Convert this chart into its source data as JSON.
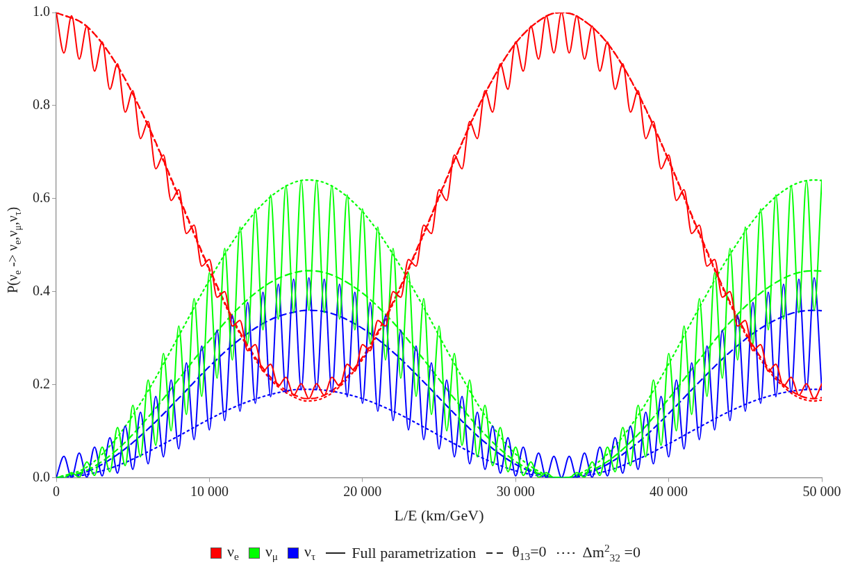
{
  "chart_data": {
    "type": "line",
    "xlabel": "L/E (km/GeV)",
    "ylabel": "P(ν$_{e}$ -> ν$_{e}$,ν$_{μ}$,ν$_{τ}$)",
    "x": [
      0,
      500,
      1000,
      1500,
      2000,
      2500,
      3000,
      3500,
      4000,
      4500,
      5000,
      5500,
      6000,
      6500,
      7000,
      7500,
      8000,
      8500,
      9000,
      9500,
      10000,
      10500,
      11000,
      11500,
      12000,
      12500,
      13000,
      13500,
      14000,
      14500,
      15000,
      15500,
      16000,
      16500,
      17000,
      17500,
      18000,
      18500,
      19000,
      19500,
      20000,
      20500,
      21000,
      21500,
      22000,
      22500,
      23000,
      23500,
      24000,
      24500,
      25000,
      25500,
      26000,
      26500,
      27000,
      27500,
      28000,
      28500,
      29000,
      29500,
      30000,
      30500,
      31000,
      31500,
      32000,
      32500,
      33000,
      33500,
      34000,
      34500,
      35000,
      35500,
      36000,
      36500,
      37000,
      37500,
      38000,
      38500,
      39000,
      39500,
      40000,
      40500,
      41000,
      41500,
      42000,
      42500,
      43000,
      43500,
      44000,
      44500,
      45000,
      45500,
      46000,
      46500,
      47000,
      47500,
      48000,
      48500,
      49000,
      49500,
      50000
    ],
    "xlim": [
      0,
      50000
    ],
    "xticks": [
      0,
      {
        "value": 10000,
        "label": "10 000"
      },
      {
        "value": 20000,
        "label": "20 000"
      },
      {
        "value": 30000,
        "label": "30 000"
      },
      {
        "value": 40000,
        "label": "40 000"
      },
      {
        "value": 50000,
        "label": "50 000"
      }
    ],
    "ylim": [
      0,
      1
    ],
    "yticks": [
      {
        "value": 0,
        "label": "0.0"
      },
      0.2,
      0.4,
      0.6,
      0.8,
      {
        "value": 1,
        "label": "1.0"
      }
    ],
    "grid": false,
    "legend": "bottom",
    "marker": "none",
    "annotations": [
      "Full parametrization",
      "θ$_{13}$=0",
      "Δm$^{2}$$_{32}$ =0"
    ],
    "series": [
      {
        "name": "ν$_{e}$",
        "color": "#ff0000",
        "line_style": "solid",
        "values": [
          1,
          0.913,
          0.993,
          0.9,
          0.971,
          0.874,
          0.937,
          0.835,
          0.89,
          0.786,
          0.832,
          0.729,
          0.766,
          0.664,
          0.694,
          0.596,
          0.619,
          0.525,
          0.543,
          0.455,
          0.469,
          0.388,
          0.4,
          0.326,
          0.338,
          0.273,
          0.286,
          0.229,
          0.244,
          0.197,
          0.216,
          0.177,
          0.202,
          0.17,
          0.202,
          0.177,
          0.216,
          0.197,
          0.244,
          0.229,
          0.286,
          0.273,
          0.338,
          0.326,
          0.4,
          0.388,
          0.469,
          0.455,
          0.543,
          0.525,
          0.619,
          0.596,
          0.694,
          0.664,
          0.766,
          0.729,
          0.832,
          0.786,
          0.89,
          0.835,
          0.937,
          0.874,
          0.971,
          0.9,
          0.993,
          0.913,
          1,
          0.913,
          0.993,
          0.9,
          0.971,
          0.874,
          0.937,
          0.835,
          0.89,
          0.786,
          0.832,
          0.729,
          0.766,
          0.664,
          0.694,
          0.596,
          0.619,
          0.525,
          0.543,
          0.455,
          0.469,
          0.388,
          0.4,
          0.326,
          0.338,
          0.273,
          0.286,
          0.229,
          0.244,
          0.197,
          0.216,
          0.177,
          0.202,
          0.17,
          0.202
        ]
      },
      {
        "name": "ν$_{μ}$",
        "color": "#00ff00",
        "line_style": "solid",
        "values": [
          0,
          0,
          0.011,
          0.001,
          0.034,
          0.005,
          0.066,
          0.013,
          0.108,
          0.026,
          0.156,
          0.045,
          0.21,
          0.07,
          0.267,
          0.101,
          0.326,
          0.136,
          0.385,
          0.175,
          0.441,
          0.214,
          0.493,
          0.253,
          0.539,
          0.288,
          0.578,
          0.318,
          0.608,
          0.341,
          0.628,
          0.355,
          0.639,
          0.36,
          0.639,
          0.355,
          0.628,
          0.341,
          0.608,
          0.318,
          0.578,
          0.288,
          0.539,
          0.253,
          0.493,
          0.214,
          0.441,
          0.175,
          0.385,
          0.136,
          0.326,
          0.101,
          0.267,
          0.07,
          0.21,
          0.045,
          0.156,
          0.026,
          0.108,
          0.013,
          0.066,
          0.005,
          0.034,
          0.001,
          0.011,
          0,
          0,
          0,
          0.011,
          0.001,
          0.034,
          0.005,
          0.066,
          0.013,
          0.108,
          0.026,
          0.156,
          0.045,
          0.21,
          0.07,
          0.267,
          0.101,
          0.326,
          0.136,
          0.385,
          0.175,
          0.441,
          0.214,
          0.493,
          0.253,
          0.539,
          0.288,
          0.578,
          0.318,
          0.608,
          0.341,
          0.628,
          0.355,
          0.639,
          0.36,
          0.639
        ]
      },
      {
        "name": "ν$_{τ}$",
        "color": "#0000ff",
        "line_style": "solid",
        "values": [
          0,
          0.046,
          0,
          0.053,
          0.001,
          0.066,
          0.004,
          0.086,
          0.01,
          0.111,
          0.018,
          0.141,
          0.03,
          0.175,
          0.045,
          0.21,
          0.062,
          0.247,
          0.082,
          0.283,
          0.103,
          0.317,
          0.123,
          0.349,
          0.143,
          0.377,
          0.16,
          0.399,
          0.174,
          0.416,
          0.184,
          0.427,
          0.189,
          0.43,
          0.189,
          0.427,
          0.184,
          0.416,
          0.174,
          0.399,
          0.16,
          0.377,
          0.143,
          0.349,
          0.123,
          0.317,
          0.103,
          0.283,
          0.082,
          0.247,
          0.062,
          0.21,
          0.045,
          0.175,
          0.03,
          0.141,
          0.018,
          0.111,
          0.01,
          0.086,
          0.004,
          0.066,
          0.001,
          0.053,
          0,
          0.046,
          0,
          0.046,
          0,
          0.053,
          0.001,
          0.066,
          0.004,
          0.086,
          0.01,
          0.111,
          0.018,
          0.141,
          0.03,
          0.175,
          0.045,
          0.21,
          0.062,
          0.247,
          0.082,
          0.283,
          0.103,
          0.317,
          0.123,
          0.349,
          0.143,
          0.377,
          0.16,
          0.399,
          0.174,
          0.416,
          0.184,
          0.427,
          0.189,
          0.43,
          0.189
        ]
      },
      {
        "color": "#ff0000",
        "line_style": "dashed",
        "x": [
          0,
          2000,
          4000,
          6000,
          8000,
          10000,
          12000,
          14000,
          16000,
          16500,
          18000,
          20000,
          22000,
          24000,
          26000,
          28000,
          30000,
          32000,
          33000,
          34000,
          36000,
          38000,
          40000,
          42000,
          44000,
          46000,
          48000,
          49500,
          50000
        ],
        "values": [
          1,
          0.97,
          0.885,
          0.757,
          0.605,
          0.449,
          0.313,
          0.216,
          0.172,
          0.17,
          0.187,
          0.259,
          0.378,
          0.526,
          0.683,
          0.826,
          0.934,
          0.992,
          1,
          0.992,
          0.934,
          0.826,
          0.683,
          0.526,
          0.378,
          0.259,
          0.187,
          0.17,
          0.172
        ]
      },
      {
        "color": "#00ff00",
        "line_style": "dashed",
        "x": [
          0,
          2000,
          4000,
          6000,
          8000,
          10000,
          12000,
          14000,
          16000,
          16500,
          18000,
          20000,
          22000,
          24000,
          26000,
          28000,
          30000,
          32000,
          33000,
          34000,
          36000,
          38000,
          40000,
          42000,
          44000,
          46000,
          48000,
          49500,
          50000
        ],
        "values": [
          0,
          0.016,
          0.061,
          0.13,
          0.212,
          0.295,
          0.368,
          0.42,
          0.444,
          0.445,
          0.436,
          0.397,
          0.334,
          0.254,
          0.17,
          0.093,
          0.035,
          0.004,
          0,
          0.004,
          0.035,
          0.093,
          0.17,
          0.254,
          0.334,
          0.397,
          0.436,
          0.445,
          0.444
        ]
      },
      {
        "color": "#0000ff",
        "line_style": "dashed",
        "x": [
          0,
          2000,
          4000,
          6000,
          8000,
          10000,
          12000,
          14000,
          16000,
          16500,
          18000,
          20000,
          22000,
          24000,
          26000,
          28000,
          30000,
          32000,
          33000,
          34000,
          36000,
          38000,
          40000,
          42000,
          44000,
          46000,
          48000,
          49500,
          50000
        ],
        "values": [
          0,
          0.013,
          0.05,
          0.105,
          0.171,
          0.239,
          0.298,
          0.34,
          0.359,
          0.36,
          0.353,
          0.321,
          0.27,
          0.206,
          0.138,
          0.076,
          0.029,
          0.003,
          0,
          0.003,
          0.029,
          0.076,
          0.138,
          0.206,
          0.27,
          0.321,
          0.353,
          0.36,
          0.359
        ]
      },
      {
        "color": "#ff0000",
        "line_style": "dotted",
        "x": [
          0,
          2000,
          4000,
          6000,
          8000,
          10000,
          12000,
          14000,
          16000,
          16500,
          18000,
          20000,
          22000,
          24000,
          26000,
          28000,
          30000,
          32000,
          33000,
          34000,
          36000,
          38000,
          40000,
          42000,
          44000,
          46000,
          48000,
          49500,
          50000
        ],
        "values": [
          1,
          0.97,
          0.885,
          0.756,
          0.602,
          0.446,
          0.309,
          0.211,
          0.167,
          0.165,
          0.182,
          0.254,
          0.374,
          0.523,
          0.681,
          0.825,
          0.934,
          0.992,
          1,
          0.992,
          0.934,
          0.825,
          0.681,
          0.523,
          0.374,
          0.254,
          0.182,
          0.165,
          0.167
        ]
      },
      {
        "color": "#00ff00",
        "line_style": "dotted",
        "x": [
          0,
          2000,
          4000,
          6000,
          8000,
          10000,
          12000,
          14000,
          16000,
          16500,
          18000,
          20000,
          22000,
          24000,
          26000,
          28000,
          30000,
          32000,
          33000,
          34000,
          36000,
          38000,
          40000,
          42000,
          44000,
          46000,
          48000,
          49500,
          50000
        ],
        "values": [
          0,
          0.023,
          0.088,
          0.187,
          0.305,
          0.425,
          0.53,
          0.604,
          0.639,
          0.64,
          0.627,
          0.572,
          0.48,
          0.366,
          0.245,
          0.134,
          0.051,
          0.006,
          0,
          0.006,
          0.051,
          0.134,
          0.245,
          0.366,
          0.48,
          0.572,
          0.627,
          0.64,
          0.639
        ]
      },
      {
        "color": "#0000ff",
        "line_style": "dotted",
        "x": [
          0,
          2000,
          4000,
          6000,
          8000,
          10000,
          12000,
          14000,
          16000,
          16500,
          18000,
          20000,
          22000,
          24000,
          26000,
          28000,
          30000,
          32000,
          33000,
          34000,
          36000,
          38000,
          40000,
          42000,
          44000,
          46000,
          48000,
          49500,
          50000
        ],
        "values": [
          0,
          0.007,
          0.026,
          0.056,
          0.09,
          0.126,
          0.157,
          0.179,
          0.19,
          0.19,
          0.186,
          0.17,
          0.143,
          0.109,
          0.073,
          0.04,
          0.015,
          0.002,
          0,
          0.002,
          0.015,
          0.04,
          0.073,
          0.109,
          0.143,
          0.17,
          0.186,
          0.19,
          0.19
        ]
      }
    ]
  }
}
